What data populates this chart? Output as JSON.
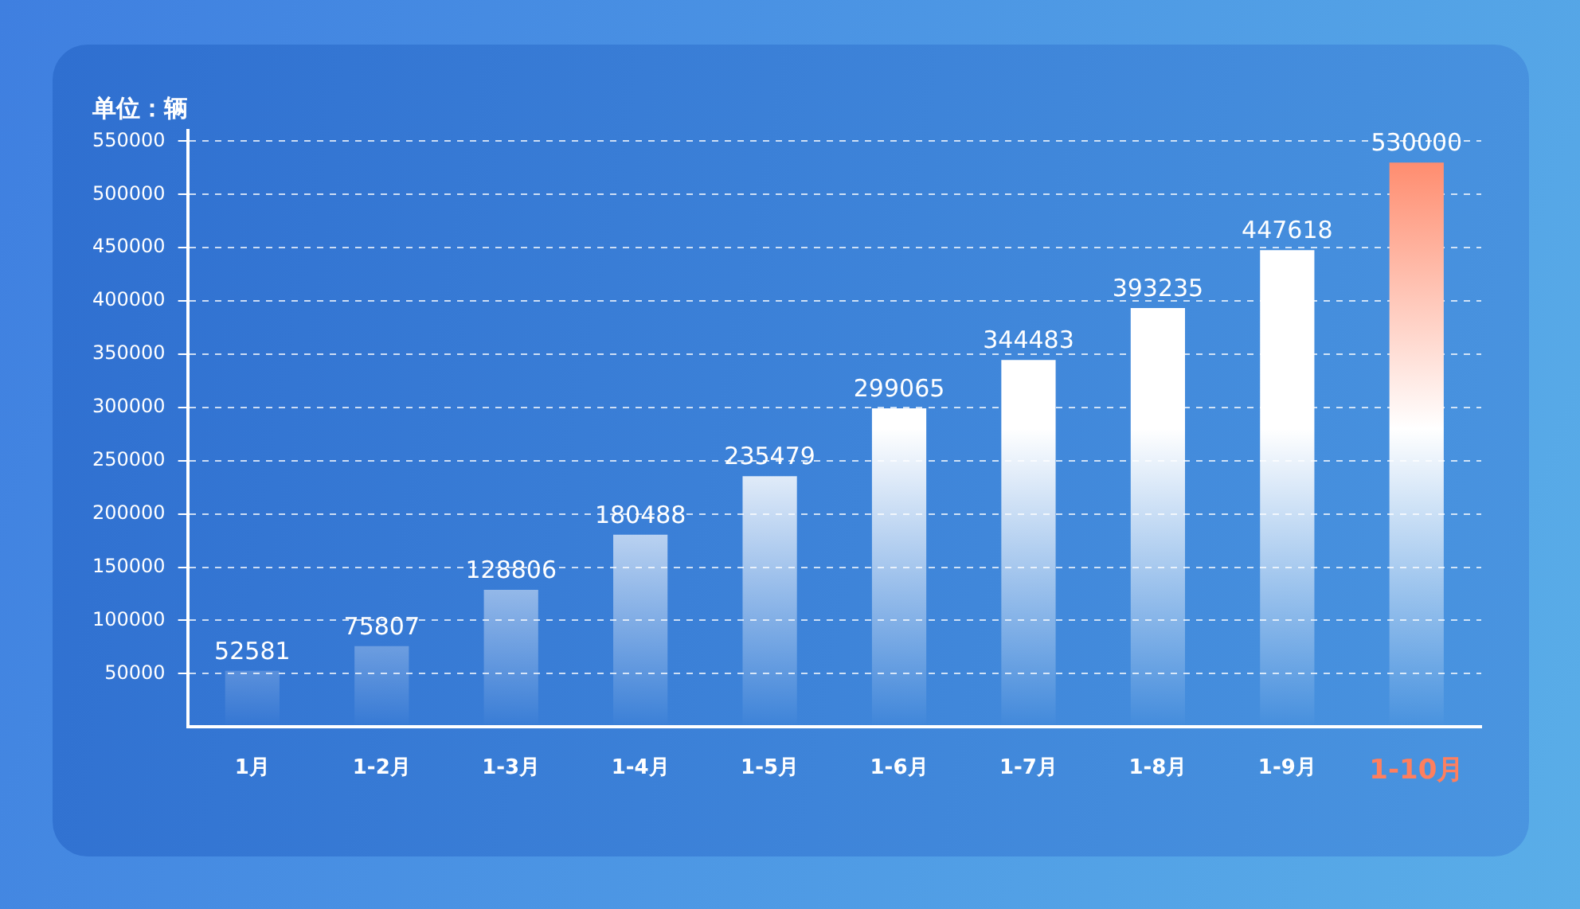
{
  "chart_data": {
    "type": "bar",
    "ylabel": "单位：辆",
    "categories": [
      "1月",
      "1-2月",
      "1-3月",
      "1-4月",
      "1-5月",
      "1-6月",
      "1-7月",
      "1-8月",
      "1-9月",
      "1-10月"
    ],
    "values": [
      52581,
      75807,
      128806,
      180488,
      235479,
      299065,
      344483,
      393235,
      447618,
      530000
    ],
    "colors": [
      "#ffffff",
      "#ffffff",
      "#ffffff",
      "#ffffff",
      "#ffffff",
      "#ffffff",
      "#ffffff",
      "#ffffff",
      "#ffffff",
      "#ff7f5e"
    ],
    "ylim": [
      0,
      560000
    ],
    "yticks": [
      50000,
      100000,
      150000,
      200000,
      250000,
      300000,
      350000,
      400000,
      450000,
      500000,
      550000
    ],
    "grid": "y",
    "data_labels": true
  }
}
